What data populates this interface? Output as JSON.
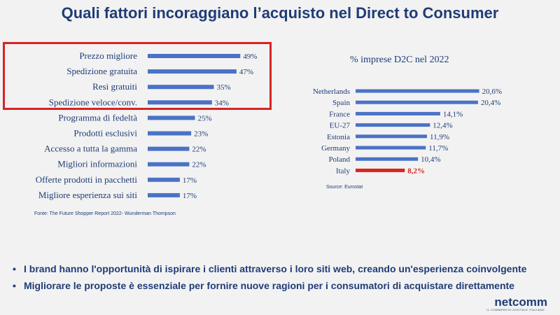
{
  "title": "Quali fattori incoraggiano l’acquisto nel Direct to Consumer",
  "chart_data": [
    {
      "type": "bar",
      "orientation": "horizontal",
      "categories": [
        "Prezzo migliore",
        "Spedizione gratuita",
        "Resi gratuiti",
        "Spedizione veloce/conv.",
        "Programma di fedeltà",
        "Prodotti esclusivi",
        "Accesso a tutta la gamma",
        "Migliori informazioni",
        "Offerte prodotti in pacchetti",
        "Migliore esperienza sui siti"
      ],
      "values": [
        49,
        47,
        35,
        34,
        25,
        23,
        22,
        22,
        17,
        17
      ],
      "value_labels": [
        "49%",
        "47%",
        "35%",
        "34%",
        "25%",
        "23%",
        "22%",
        "22%",
        "17%",
        "17%"
      ],
      "xlim": [
        0,
        50
      ],
      "bar_color": "#4a72c6",
      "highlighted_categories": [
        "Prezzo migliore",
        "Spedizione gratuita",
        "Resi gratuiti",
        "Spedizione veloce/conv."
      ],
      "highlight_color": "#d72323",
      "source": "Fonte: The Future Shopper Report 2022- Wunderman Thompson"
    },
    {
      "type": "bar",
      "orientation": "horizontal",
      "title": "% imprese D2C nel 2022",
      "categories": [
        "Netherlands",
        "Spain",
        "France",
        "EU-27",
        "Estonia",
        "Germany",
        "Poland",
        "Italy"
      ],
      "values": [
        20.6,
        20.4,
        14.1,
        12.4,
        11.9,
        11.7,
        10.4,
        8.2
      ],
      "value_labels": [
        "20,6%",
        "20,4%",
        "14,1%",
        "12,4%",
        "11,9%",
        "11,7%",
        "10,4%",
        "8,2%"
      ],
      "xlim": [
        0,
        21
      ],
      "bar_color": "#4a72c6",
      "highlight_category": "Italy",
      "highlight_color": "#d7261e",
      "source": "Source: Eurostat"
    }
  ],
  "bullets": [
    "I brand hanno l'opportunità di ispirare i clienti attraverso i loro siti web, creando un'esperienza coinvolgente",
    "Migliorare le proposte è essenziale per fornire nuove ragioni per i consumatori di acquistare direttamente"
  ],
  "logo": {
    "text": "netcomm",
    "tagline": "IL COMMERCIO DIGITALE ITALIANO"
  }
}
